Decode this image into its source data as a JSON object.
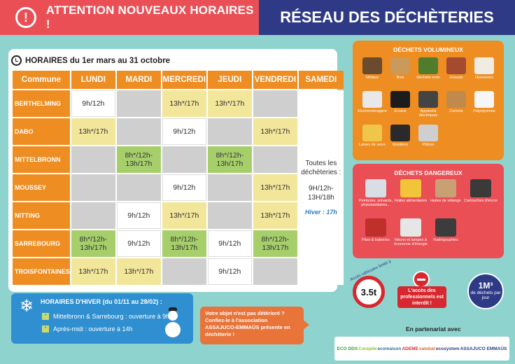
{
  "header": {
    "alert_icon": "exclamation-icon",
    "alert_title": "ATTENTION NOUVEAUX HORAIRES !",
    "network_title": "RÉSEAU DES DÉCHÈTERIES"
  },
  "schedule": {
    "title": "HORAIRES du 1er mars au 31 octobre",
    "columns": [
      "Commune",
      "LUNDI",
      "MARDI",
      "MERCREDI",
      "JEUDI",
      "VENDREDI",
      "SAMEDI"
    ],
    "rows": [
      {
        "commune": "BERTHELMING",
        "lundi": "9h/12h",
        "mardi": "",
        "mercredi": "13h*/17h",
        "jeudi": "13h*/17h",
        "vendredi": ""
      },
      {
        "commune": "DABO",
        "lundi": "13h*/17h",
        "mardi": "",
        "mercredi": "9h/12h",
        "jeudi": "",
        "vendredi": "13h*/17h"
      },
      {
        "commune": "MITTELBRONN",
        "lundi": "",
        "mardi": "8h*/12h-13h/17h",
        "mercredi": "",
        "jeudi": "8h*/12h-13h/17h",
        "vendredi": ""
      },
      {
        "commune": "MOUSSEY",
        "lundi": "",
        "mardi": "",
        "mercredi": "9h/12h",
        "jeudi": "",
        "vendredi": "13h*/17h"
      },
      {
        "commune": "NITTING",
        "lundi": "",
        "mardi": "9h/12h",
        "mercredi": "13h*/17h",
        "jeudi": "",
        "vendredi": "13h*/17h"
      },
      {
        "commune": "SARREBOURG",
        "lundi": "8h*/12h-13h/17h",
        "mardi": "9h/12h",
        "mercredi": "8h*/12h-13h/17h",
        "jeudi": "9h/12h",
        "vendredi": "8h*/12h-13h/17h"
      },
      {
        "commune": "TROISFONTAINES",
        "lundi": "13h*/17h",
        "mardi": "13h*/17h",
        "mercredi": "",
        "jeudi": "9h/12h",
        "vendredi": ""
      }
    ],
    "samedi": {
      "line1": "Toutes les déchèteries :",
      "hours": "9H/12h-13H/18h",
      "hiver": "Hiver : 17h"
    }
  },
  "winter": {
    "title": "HORAIRES D'HIVER (du 01/11 au 28/02) :",
    "line1": "Mittelbronn & Sarrebourg : ouverture à 9h",
    "line2": "Après-midi : ouverture à 14h",
    "bullet": "*"
  },
  "message": {
    "text": "Votre objet n'est pas détérioré ? Confiez-le à l'association ASSAJUCO-EMMAÜS présente en déchèterie !"
  },
  "volumineux": {
    "title": "DÉCHETS VOLUMINEUX",
    "items": [
      "Métaux",
      "Bois",
      "Déchets verts",
      "Gravats",
      "Huisseries",
      "Electroménagers",
      "Ecrans",
      "Appareils électriques",
      "Cartons",
      "Polystyrènes",
      "Laines de verre",
      "Mobiliers",
      "Plâtres"
    ],
    "colors": [
      "#6b4a2e",
      "#c99a5b",
      "#4f7d2c",
      "#a44a2f",
      "#f0ece2",
      "#e8e8e8",
      "#1c1c1c",
      "#444444",
      "#c08a4c",
      "#f6f6f6",
      "#f0c64a",
      "#2a2a2a",
      "#cfcfcf"
    ]
  },
  "dangereux": {
    "title": "DÉCHETS DANGEREUX",
    "items": [
      "Peintures, solvants, phytosanitaires...",
      "Huiles alimentaires",
      "Huiles de vidange",
      "Cartouches d'encre",
      "Piles & batteries",
      "Néons et lampes à économie d'énergie",
      "Radiographies"
    ],
    "colors": [
      "#d9dde5",
      "#f2c43a",
      "#c9a073",
      "#3a3a3a",
      "#c0302b",
      "#e6e6e6",
      "#3c3c3c"
    ]
  },
  "limits": {
    "vehicles_label": "Accès véhicules limité à",
    "weight": "3.5t",
    "pro_text": "L'accès des professionnels est interdit !",
    "volume_big": "1M³",
    "volume_small": "de déchets par jour"
  },
  "partners": {
    "title": "En partenariat avec",
    "logos": [
      "ECO DDS",
      "Corepile",
      "ecomaison",
      "ADEME",
      "valobat",
      "ecosystem",
      "ASSAJUCO EMMAÜS"
    ]
  }
}
